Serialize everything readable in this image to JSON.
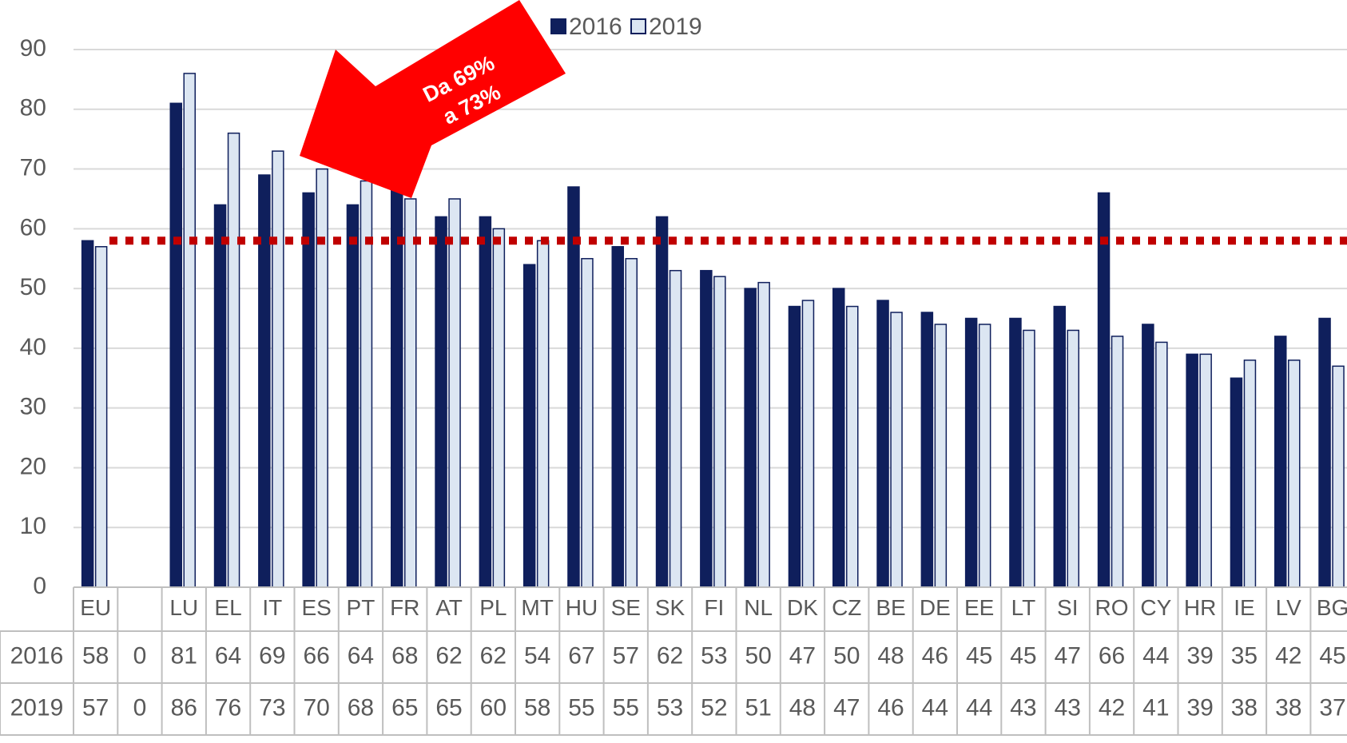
{
  "chart_data": {
    "type": "bar",
    "categories": [
      "EU",
      null,
      "LU",
      "EL",
      "IT",
      "ES",
      "PT",
      "FR",
      "AT",
      "PL",
      "MT",
      "HU",
      "SE",
      "SK",
      "FI",
      "NL",
      "DK",
      "CZ",
      "BE",
      "DE",
      "EE",
      "LT",
      "SI",
      "RO",
      "CY",
      "HR",
      "IE",
      "LV",
      "BG"
    ],
    "series": [
      {
        "name": "2016",
        "color": "#0f1f5c",
        "values": [
          58,
          0,
          81,
          64,
          69,
          66,
          64,
          68,
          62,
          62,
          54,
          67,
          57,
          62,
          53,
          50,
          47,
          50,
          48,
          46,
          45,
          45,
          47,
          66,
          44,
          39,
          35,
          42,
          45
        ]
      },
      {
        "name": "2019",
        "color": "#dce6f2",
        "values": [
          57,
          0,
          86,
          76,
          73,
          70,
          68,
          65,
          65,
          60,
          58,
          55,
          55,
          53,
          52,
          51,
          48,
          47,
          46,
          44,
          44,
          43,
          43,
          42,
          41,
          39,
          38,
          38,
          37
        ]
      }
    ],
    "ylim": [
      0,
      90
    ],
    "yticks": [
      0,
      10,
      20,
      30,
      40,
      50,
      60,
      70,
      80,
      90
    ],
    "grid": true,
    "average_line": {
      "value": 58,
      "color": "#c00000"
    },
    "annotation": [
      "Da 69%",
      "a 73%"
    ],
    "legend": "top"
  }
}
